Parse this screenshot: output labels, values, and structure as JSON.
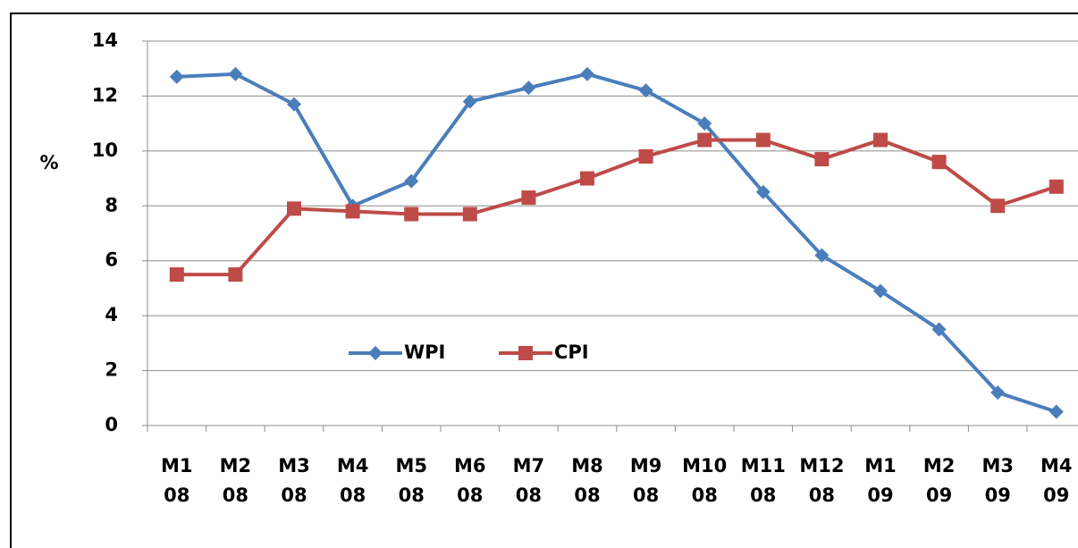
{
  "chart_data": {
    "type": "line",
    "y_label": "%",
    "categories": [
      [
        "M1",
        "08"
      ],
      [
        "M2",
        "08"
      ],
      [
        "M3",
        "08"
      ],
      [
        "M4",
        "08"
      ],
      [
        "M5",
        "08"
      ],
      [
        "M6",
        "08"
      ],
      [
        "M7",
        "08"
      ],
      [
        "M8",
        "08"
      ],
      [
        "M9",
        "08"
      ],
      [
        "M10",
        "08"
      ],
      [
        "M11",
        "08"
      ],
      [
        "M12",
        "08"
      ],
      [
        "M1",
        "09"
      ],
      [
        "M2",
        "09"
      ],
      [
        "M3",
        "09"
      ],
      [
        "M4",
        "09"
      ]
    ],
    "series": [
      {
        "name": "WPI",
        "color": "#4a7ebb",
        "marker": "diamond",
        "values": [
          12.7,
          12.8,
          11.7,
          8.0,
          8.9,
          11.8,
          12.3,
          12.8,
          12.2,
          11.0,
          8.5,
          6.2,
          4.9,
          3.5,
          1.2,
          0.5
        ]
      },
      {
        "name": "CPI",
        "color": "#be4b48",
        "marker": "square",
        "values": [
          5.5,
          5.5,
          7.9,
          7.8,
          7.7,
          7.7,
          8.3,
          9.0,
          9.8,
          10.4,
          10.4,
          9.7,
          10.4,
          9.6,
          8.0,
          8.7
        ]
      }
    ],
    "ylim": [
      0,
      14
    ],
    "yticks": [
      0,
      2,
      4,
      6,
      8,
      10,
      12,
      14
    ],
    "grid": true
  }
}
